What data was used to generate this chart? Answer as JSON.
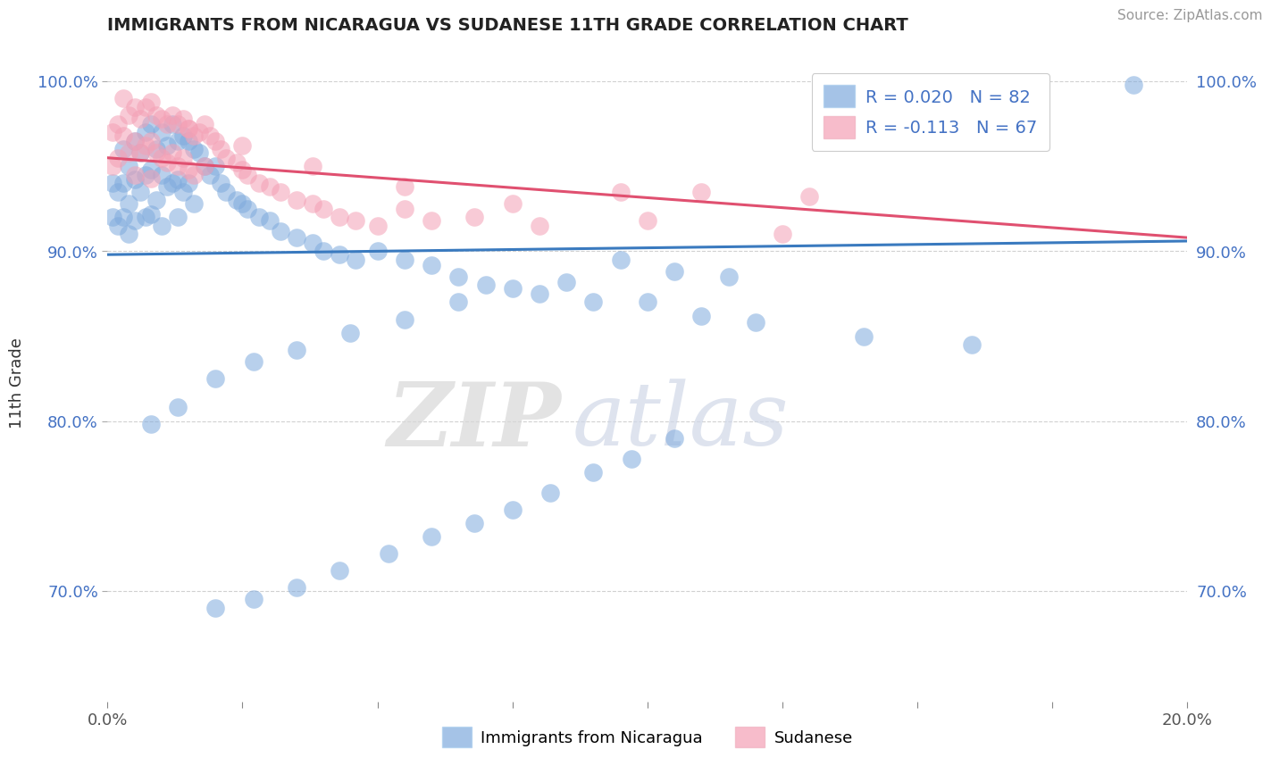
{
  "title": "IMMIGRANTS FROM NICARAGUA VS SUDANESE 11TH GRADE CORRELATION CHART",
  "source": "Source: ZipAtlas.com",
  "ylabel": "11th Grade",
  "xlim": [
    0.0,
    0.2
  ],
  "ylim": [
    0.635,
    1.01
  ],
  "xticks": [
    0.0,
    0.025,
    0.05,
    0.075,
    0.1,
    0.125,
    0.15,
    0.175,
    0.2
  ],
  "xtick_labels": [
    "0.0%",
    "",
    "",
    "",
    "",
    "",
    "",
    "",
    "20.0%"
  ],
  "yticks": [
    0.7,
    0.8,
    0.9,
    1.0
  ],
  "ytick_labels": [
    "70.0%",
    "80.0%",
    "90.0%",
    "100.0%"
  ],
  "R_nicaragua": 0.02,
  "N_nicaragua": 82,
  "R_sudanese": -0.113,
  "N_sudanese": 67,
  "color_nicaragua": "#7faadd",
  "color_sudanese": "#f4a0b5",
  "legend_label_nicaragua": "Immigrants from Nicaragua",
  "legend_label_sudanese": "Sudanese",
  "watermark_zip": "ZIP",
  "watermark_atlas": "atlas",
  "nic_trend_x": [
    0.0,
    0.2
  ],
  "nic_trend_y": [
    0.898,
    0.906
  ],
  "sud_trend_x": [
    0.0,
    0.2
  ],
  "sud_trend_y": [
    0.955,
    0.908
  ],
  "nicaragua_x": [
    0.001,
    0.001,
    0.002,
    0.002,
    0.003,
    0.003,
    0.003,
    0.004,
    0.004,
    0.004,
    0.005,
    0.005,
    0.005,
    0.006,
    0.006,
    0.007,
    0.007,
    0.007,
    0.008,
    0.008,
    0.008,
    0.009,
    0.009,
    0.01,
    0.01,
    0.01,
    0.011,
    0.011,
    0.012,
    0.012,
    0.013,
    0.013,
    0.013,
    0.014,
    0.014,
    0.015,
    0.015,
    0.016,
    0.016,
    0.017,
    0.018,
    0.019,
    0.02,
    0.021,
    0.022,
    0.024,
    0.025,
    0.026,
    0.028,
    0.03,
    0.032,
    0.035,
    0.038,
    0.04,
    0.043,
    0.046,
    0.05,
    0.055,
    0.06,
    0.065,
    0.07,
    0.08,
    0.09,
    0.1,
    0.11,
    0.12,
    0.14,
    0.16,
    0.19,
    0.105,
    0.115,
    0.095,
    0.085,
    0.075,
    0.065,
    0.055,
    0.045,
    0.035,
    0.027,
    0.02,
    0.013,
    0.008
  ],
  "nicaragua_y": [
    0.94,
    0.92,
    0.935,
    0.915,
    0.96,
    0.94,
    0.92,
    0.95,
    0.928,
    0.91,
    0.965,
    0.942,
    0.918,
    0.958,
    0.935,
    0.97,
    0.945,
    0.92,
    0.975,
    0.948,
    0.922,
    0.96,
    0.93,
    0.97,
    0.945,
    0.915,
    0.962,
    0.938,
    0.975,
    0.94,
    0.965,
    0.942,
    0.92,
    0.968,
    0.935,
    0.965,
    0.94,
    0.96,
    0.928,
    0.958,
    0.95,
    0.945,
    0.95,
    0.94,
    0.935,
    0.93,
    0.928,
    0.925,
    0.92,
    0.918,
    0.912,
    0.908,
    0.905,
    0.9,
    0.898,
    0.895,
    0.9,
    0.895,
    0.892,
    0.885,
    0.88,
    0.875,
    0.87,
    0.87,
    0.862,
    0.858,
    0.85,
    0.845,
    0.998,
    0.888,
    0.885,
    0.895,
    0.882,
    0.878,
    0.87,
    0.86,
    0.852,
    0.842,
    0.835,
    0.825,
    0.808,
    0.798
  ],
  "nicaragua_y_low": [
    0.79,
    0.778,
    0.77,
    0.758,
    0.748,
    0.74,
    0.732,
    0.722,
    0.712,
    0.702,
    0.695,
    0.69
  ],
  "nicaragua_x_low": [
    0.105,
    0.097,
    0.09,
    0.082,
    0.075,
    0.068,
    0.06,
    0.052,
    0.043,
    0.035,
    0.027,
    0.02
  ],
  "sudanese_x": [
    0.001,
    0.001,
    0.002,
    0.002,
    0.003,
    0.003,
    0.004,
    0.004,
    0.005,
    0.005,
    0.005,
    0.006,
    0.006,
    0.007,
    0.007,
    0.008,
    0.008,
    0.008,
    0.009,
    0.009,
    0.01,
    0.01,
    0.011,
    0.011,
    0.012,
    0.012,
    0.013,
    0.013,
    0.014,
    0.014,
    0.015,
    0.015,
    0.016,
    0.016,
    0.017,
    0.018,
    0.018,
    0.019,
    0.02,
    0.021,
    0.022,
    0.024,
    0.025,
    0.026,
    0.028,
    0.03,
    0.032,
    0.035,
    0.038,
    0.04,
    0.043,
    0.046,
    0.05,
    0.055,
    0.06,
    0.068,
    0.08,
    0.095,
    0.11,
    0.13,
    0.015,
    0.025,
    0.038,
    0.055,
    0.075,
    0.1,
    0.125
  ],
  "sudanese_y": [
    0.97,
    0.95,
    0.975,
    0.955,
    0.99,
    0.968,
    0.98,
    0.958,
    0.985,
    0.965,
    0.945,
    0.978,
    0.958,
    0.985,
    0.962,
    0.988,
    0.965,
    0.943,
    0.98,
    0.958,
    0.978,
    0.955,
    0.975,
    0.952,
    0.98,
    0.958,
    0.975,
    0.95,
    0.978,
    0.955,
    0.972,
    0.948,
    0.968,
    0.945,
    0.97,
    0.975,
    0.95,
    0.968,
    0.965,
    0.96,
    0.955,
    0.952,
    0.948,
    0.945,
    0.94,
    0.938,
    0.935,
    0.93,
    0.928,
    0.925,
    0.92,
    0.918,
    0.915,
    0.925,
    0.918,
    0.92,
    0.915,
    0.935,
    0.935,
    0.932,
    0.972,
    0.962,
    0.95,
    0.938,
    0.928,
    0.918,
    0.91
  ]
}
